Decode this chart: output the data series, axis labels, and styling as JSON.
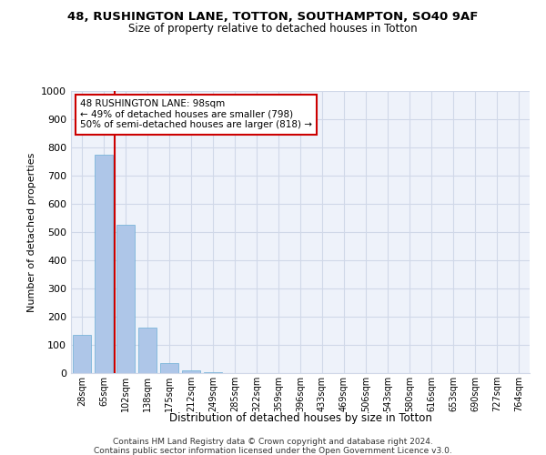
{
  "title1": "48, RUSHINGTON LANE, TOTTON, SOUTHAMPTON, SO40 9AF",
  "title2": "Size of property relative to detached houses in Totton",
  "xlabel": "Distribution of detached houses by size in Totton",
  "ylabel": "Number of detached properties",
  "bin_labels": [
    "28sqm",
    "65sqm",
    "102sqm",
    "138sqm",
    "175sqm",
    "212sqm",
    "249sqm",
    "285sqm",
    "322sqm",
    "359sqm",
    "396sqm",
    "433sqm",
    "469sqm",
    "506sqm",
    "543sqm",
    "580sqm",
    "616sqm",
    "653sqm",
    "690sqm",
    "727sqm",
    "764sqm"
  ],
  "bar_values": [
    135,
    775,
    525,
    160,
    35,
    10,
    2,
    1,
    0,
    0,
    0,
    0,
    0,
    0,
    0,
    0,
    0,
    0,
    0,
    0,
    0
  ],
  "bar_color": "#aec6e8",
  "bar_edge_color": "#6aaed6",
  "grid_color": "#d0d8e8",
  "bg_color": "#eef2fa",
  "vline_color": "#cc0000",
  "annotation_text": "48 RUSHINGTON LANE: 98sqm\n← 49% of detached houses are smaller (798)\n50% of semi-detached houses are larger (818) →",
  "annotation_box_color": "#cc0000",
  "ylim": [
    0,
    1000
  ],
  "footnote1": "Contains HM Land Registry data © Crown copyright and database right 2024.",
  "footnote2": "Contains public sector information licensed under the Open Government Licence v3.0."
}
